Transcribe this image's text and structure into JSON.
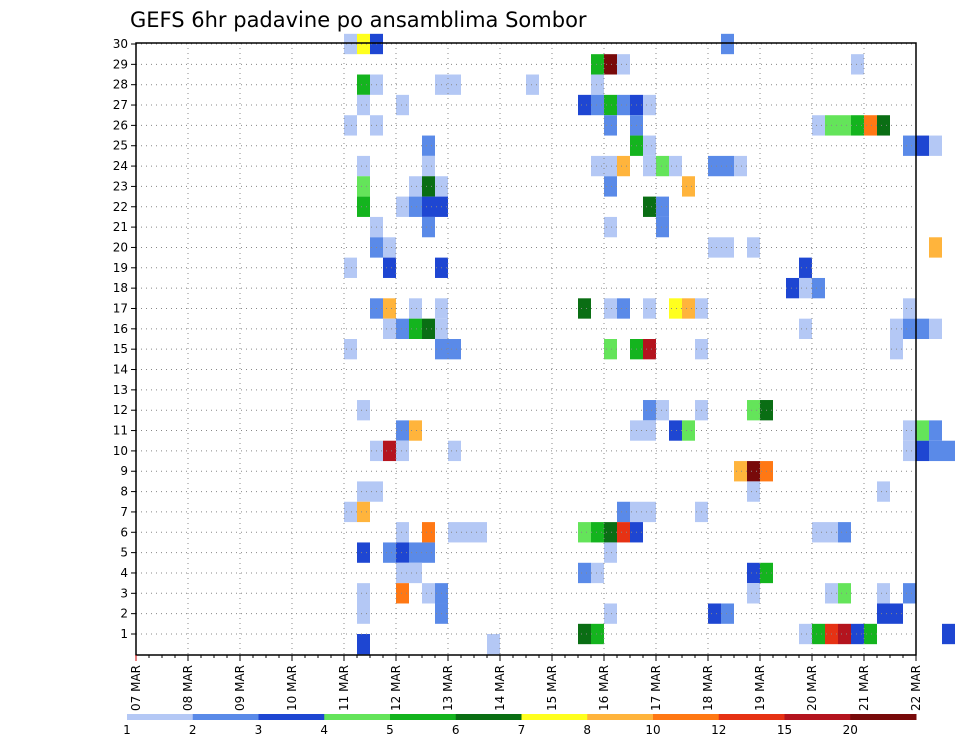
{
  "chart_data": {
    "type": "heatmap",
    "title": "GEFS 6hr padavine po ansamblima Sombor",
    "xlabel": "",
    "ylabel": "",
    "x_tick_labels": [
      "07 MAR",
      "08 MAR",
      "09 MAR",
      "10 MAR",
      "11 MAR",
      "12 MAR",
      "13 MAR",
      "14 MAR",
      "15 MAR",
      "16 MAR",
      "17 MAR",
      "18 MAR",
      "19 MAR",
      "20 MAR",
      "21 MAR",
      "22 MAR"
    ],
    "y_range": [
      1,
      30
    ],
    "y_ticks": [
      1,
      2,
      3,
      4,
      5,
      6,
      7,
      8,
      9,
      10,
      11,
      12,
      13,
      14,
      15,
      16,
      17,
      18,
      19,
      20,
      21,
      22,
      23,
      24,
      25,
      26,
      27,
      28,
      29,
      30
    ],
    "time_step_hours": 6,
    "grid": true,
    "colorbar": {
      "position": "bottom",
      "labels": [
        "1",
        "2",
        "3",
        "4",
        "5",
        "6",
        "7",
        "8",
        "10",
        "12",
        "15",
        "20"
      ],
      "colors": [
        "#b4c8f5",
        "#5a8ae8",
        "#1e46d2",
        "#64e45a",
        "#14b41e",
        "#0a6e14",
        "#ffff1e",
        "#ffb43c",
        "#ff7814",
        "#e63214",
        "#b4141e",
        "#780a0a"
      ]
    },
    "cells_legend": "each cell: [x_day_offset_from_07_MAR, ensemble_member, color_index_into_colorbar]",
    "cells": [
      [
        4.0,
        30,
        0
      ],
      [
        4.25,
        30,
        6
      ],
      [
        4.5,
        30,
        2
      ],
      [
        11.25,
        30,
        1
      ],
      [
        8.75,
        29,
        4
      ],
      [
        9.0,
        29,
        11
      ],
      [
        9.25,
        29,
        0
      ],
      [
        13.75,
        29,
        0
      ],
      [
        4.25,
        28,
        4
      ],
      [
        4.5,
        28,
        0
      ],
      [
        5.75,
        28,
        0
      ],
      [
        6.0,
        28,
        0
      ],
      [
        7.5,
        28,
        0
      ],
      [
        8.75,
        28,
        0
      ],
      [
        4.25,
        27,
        0
      ],
      [
        5.0,
        27,
        0
      ],
      [
        8.5,
        27,
        2
      ],
      [
        8.75,
        27,
        1
      ],
      [
        9.0,
        27,
        4
      ],
      [
        9.25,
        27,
        1
      ],
      [
        9.5,
        27,
        2
      ],
      [
        9.75,
        27,
        0
      ],
      [
        4.0,
        26,
        0
      ],
      [
        4.5,
        26,
        0
      ],
      [
        9.0,
        26,
        1
      ],
      [
        9.5,
        26,
        1
      ],
      [
        13.0,
        26,
        0
      ],
      [
        13.25,
        26,
        3
      ],
      [
        13.5,
        26,
        3
      ],
      [
        13.75,
        26,
        4
      ],
      [
        14.0,
        26,
        8
      ],
      [
        14.25,
        26,
        5
      ],
      [
        5.5,
        25,
        1
      ],
      [
        9.5,
        25,
        4
      ],
      [
        9.75,
        25,
        0
      ],
      [
        14.75,
        25,
        1
      ],
      [
        15.0,
        25,
        2
      ],
      [
        15.25,
        25,
        0
      ],
      [
        4.25,
        24,
        0
      ],
      [
        5.5,
        24,
        0
      ],
      [
        8.75,
        24,
        0
      ],
      [
        9.0,
        24,
        0
      ],
      [
        9.25,
        24,
        7
      ],
      [
        9.75,
        24,
        0
      ],
      [
        10.0,
        24,
        3
      ],
      [
        10.25,
        24,
        0
      ],
      [
        11.0,
        24,
        1
      ],
      [
        11.25,
        24,
        1
      ],
      [
        11.5,
        24,
        0
      ],
      [
        4.25,
        23,
        3
      ],
      [
        5.25,
        23,
        0
      ],
      [
        5.5,
        23,
        5
      ],
      [
        5.75,
        23,
        0
      ],
      [
        9.0,
        23,
        1
      ],
      [
        10.5,
        23,
        7
      ],
      [
        4.25,
        22,
        4
      ],
      [
        5.0,
        22,
        0
      ],
      [
        5.25,
        22,
        1
      ],
      [
        5.5,
        22,
        2
      ],
      [
        5.75,
        22,
        2
      ],
      [
        9.75,
        22,
        5
      ],
      [
        10.0,
        22,
        1
      ],
      [
        4.5,
        21,
        0
      ],
      [
        5.5,
        21,
        1
      ],
      [
        9.0,
        21,
        0
      ],
      [
        10.0,
        21,
        1
      ],
      [
        4.5,
        20,
        1
      ],
      [
        4.75,
        20,
        0
      ],
      [
        11.0,
        20,
        0
      ],
      [
        11.25,
        20,
        0
      ],
      [
        11.75,
        20,
        0
      ],
      [
        15.25,
        20,
        7
      ],
      [
        4.0,
        19,
        0
      ],
      [
        4.75,
        19,
        2
      ],
      [
        5.75,
        19,
        2
      ],
      [
        12.75,
        19,
        2
      ],
      [
        12.5,
        18,
        2
      ],
      [
        12.75,
        18,
        0
      ],
      [
        13.0,
        18,
        1
      ],
      [
        4.5,
        17,
        1
      ],
      [
        4.75,
        17,
        7
      ],
      [
        5.25,
        17,
        0
      ],
      [
        5.75,
        17,
        0
      ],
      [
        8.5,
        17,
        5
      ],
      [
        9.0,
        17,
        0
      ],
      [
        9.25,
        17,
        1
      ],
      [
        9.75,
        17,
        0
      ],
      [
        10.25,
        17,
        6
      ],
      [
        10.5,
        17,
        7
      ],
      [
        10.75,
        17,
        0
      ],
      [
        14.75,
        17,
        0
      ],
      [
        4.75,
        16,
        0
      ],
      [
        5.0,
        16,
        1
      ],
      [
        5.25,
        16,
        4
      ],
      [
        5.5,
        16,
        5
      ],
      [
        5.75,
        16,
        0
      ],
      [
        12.75,
        16,
        0
      ],
      [
        14.5,
        16,
        0
      ],
      [
        14.75,
        16,
        1
      ],
      [
        15.0,
        16,
        1
      ],
      [
        15.25,
        16,
        0
      ],
      [
        4.0,
        15,
        0
      ],
      [
        5.75,
        15,
        1
      ],
      [
        6.0,
        15,
        1
      ],
      [
        9.0,
        15,
        3
      ],
      [
        9.5,
        15,
        4
      ],
      [
        9.75,
        15,
        10
      ],
      [
        10.75,
        15,
        0
      ],
      [
        14.5,
        15,
        0
      ],
      [
        4.25,
        12,
        0
      ],
      [
        9.75,
        12,
        1
      ],
      [
        10.0,
        12,
        0
      ],
      [
        10.75,
        12,
        0
      ],
      [
        11.75,
        12,
        3
      ],
      [
        12.0,
        12,
        5
      ],
      [
        5.0,
        11,
        1
      ],
      [
        5.25,
        11,
        7
      ],
      [
        9.5,
        11,
        0
      ],
      [
        9.75,
        11,
        0
      ],
      [
        10.25,
        11,
        2
      ],
      [
        10.5,
        11,
        3
      ],
      [
        14.75,
        11,
        0
      ],
      [
        15.0,
        11,
        3
      ],
      [
        15.25,
        11,
        1
      ],
      [
        4.5,
        10,
        0
      ],
      [
        4.75,
        10,
        10
      ],
      [
        5.0,
        10,
        0
      ],
      [
        6.0,
        10,
        0
      ],
      [
        14.75,
        10,
        0
      ],
      [
        15.0,
        10,
        2
      ],
      [
        15.25,
        10,
        1
      ],
      [
        15.5,
        10,
        1
      ],
      [
        11.5,
        9,
        7
      ],
      [
        11.75,
        9,
        11
      ],
      [
        12.0,
        9,
        8
      ],
      [
        4.25,
        8,
        0
      ],
      [
        4.5,
        8,
        0
      ],
      [
        11.75,
        8,
        0
      ],
      [
        14.25,
        8,
        0
      ],
      [
        4.0,
        7,
        0
      ],
      [
        4.25,
        7,
        7
      ],
      [
        9.25,
        7,
        1
      ],
      [
        9.5,
        7,
        0
      ],
      [
        9.75,
        7,
        0
      ],
      [
        10.75,
        7,
        0
      ],
      [
        5.0,
        6,
        0
      ],
      [
        5.5,
        6,
        8
      ],
      [
        6.0,
        6,
        0
      ],
      [
        6.25,
        6,
        0
      ],
      [
        6.5,
        6,
        0
      ],
      [
        8.5,
        6,
        3
      ],
      [
        8.75,
        6,
        4
      ],
      [
        9.0,
        6,
        5
      ],
      [
        9.25,
        6,
        9
      ],
      [
        9.5,
        6,
        2
      ],
      [
        13.0,
        6,
        0
      ],
      [
        13.25,
        6,
        0
      ],
      [
        13.5,
        6,
        1
      ],
      [
        4.25,
        5,
        2
      ],
      [
        4.75,
        5,
        1
      ],
      [
        5.0,
        5,
        2
      ],
      [
        5.25,
        5,
        1
      ],
      [
        5.5,
        5,
        1
      ],
      [
        9.0,
        5,
        0
      ],
      [
        5.0,
        4,
        0
      ],
      [
        5.25,
        4,
        0
      ],
      [
        8.5,
        4,
        1
      ],
      [
        8.75,
        4,
        0
      ],
      [
        11.75,
        4,
        2
      ],
      [
        12.0,
        4,
        4
      ],
      [
        4.25,
        3,
        0
      ],
      [
        5.0,
        3,
        8
      ],
      [
        5.5,
        3,
        0
      ],
      [
        5.75,
        3,
        1
      ],
      [
        11.75,
        3,
        0
      ],
      [
        13.25,
        3,
        0
      ],
      [
        13.5,
        3,
        3
      ],
      [
        14.25,
        3,
        0
      ],
      [
        14.75,
        3,
        1
      ],
      [
        4.25,
        2,
        0
      ],
      [
        5.75,
        2,
        1
      ],
      [
        9.0,
        2,
        0
      ],
      [
        11.0,
        2,
        2
      ],
      [
        11.25,
        2,
        1
      ],
      [
        14.25,
        2,
        2
      ],
      [
        14.5,
        2,
        2
      ],
      [
        8.5,
        1,
        5
      ],
      [
        8.75,
        1,
        4
      ],
      [
        12.75,
        1,
        0
      ],
      [
        13.0,
        1,
        4
      ],
      [
        13.25,
        1,
        9
      ],
      [
        13.5,
        1,
        10
      ],
      [
        13.75,
        1,
        2
      ],
      [
        14.0,
        1,
        4
      ],
      [
        15.5,
        1,
        2
      ],
      [
        4.25,
        0.5,
        2
      ],
      [
        6.75,
        0.5,
        0
      ]
    ]
  }
}
